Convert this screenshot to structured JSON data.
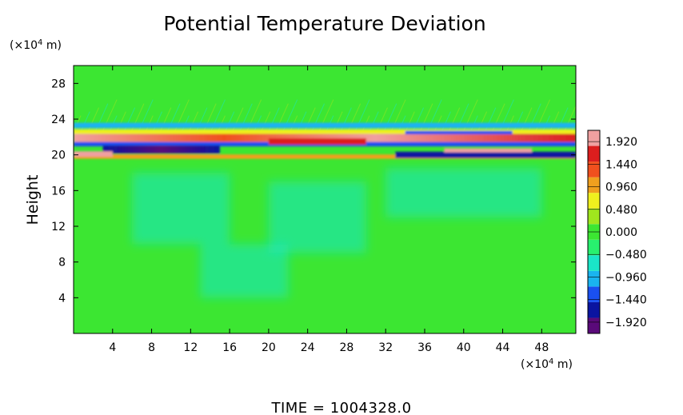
{
  "chart_data": {
    "type": "heatmap",
    "title": "Potential Temperature Deviation",
    "ylabel": "Height",
    "x_unit": {
      "base": "(×10",
      "exp": "4",
      "suffix": " m)"
    },
    "y_unit": {
      "base": "(×10",
      "exp": "4",
      "suffix": " m)"
    },
    "xlim": [
      0,
      51.5
    ],
    "ylim": [
      0,
      30
    ],
    "x_ticks": [
      4,
      8,
      12,
      16,
      20,
      24,
      28,
      32,
      36,
      40,
      44,
      48
    ],
    "x_tick_labels": [
      "4",
      "8",
      "12",
      "16",
      "20",
      "24",
      "28",
      "32",
      "36",
      "40",
      "44",
      "48"
    ],
    "y_ticks": [
      4,
      8,
      12,
      16,
      20,
      24,
      28
    ],
    "y_tick_labels": [
      "4",
      "8",
      "12",
      "16",
      "20",
      "24",
      "28"
    ],
    "colorbar": {
      "min": -2.16,
      "max": 2.16,
      "ticks": [
        1.92,
        1.44,
        0.96,
        0.48,
        0.0,
        -0.48,
        -0.96,
        -1.44,
        -1.92
      ],
      "tick_labels": [
        "1.920",
        "1.440",
        "0.960",
        "0.480",
        "0.000",
        "−0.480",
        "−0.960",
        "−1.440",
        "−1.920"
      ],
      "colors": [
        "#5a0a7a",
        "#0a14a0",
        "#1a50f0",
        "#1ab4f0",
        "#1ae6c8",
        "#28f06e",
        "#3ce632",
        "#a0e61e",
        "#f0f01e",
        "#f0a01e",
        "#f0501e",
        "#dc1e1e",
        "#f0a0a0"
      ]
    },
    "background_value": 0.1,
    "features": [
      {
        "value": 1.9,
        "x": [
          0,
          51.5
        ],
        "y": 21.8,
        "note": "upper positive band"
      },
      {
        "value": -1.9,
        "x": [
          3,
          15
        ],
        "y": 20.5
      },
      {
        "value": -1.9,
        "x": [
          33,
          51.5
        ],
        "y": 20.0
      },
      {
        "value": 1.2,
        "x": [
          20,
          30
        ],
        "y": 21.5
      },
      {
        "value": -1.5,
        "x": [
          34,
          45
        ],
        "y": 22.5
      },
      {
        "value": -0.3,
        "x": [
          5,
          50
        ],
        "y": [
          10,
          19
        ],
        "note": "broad cyan region"
      }
    ],
    "footer": {
      "label": "TIME",
      "value": "1004328.0"
    }
  }
}
